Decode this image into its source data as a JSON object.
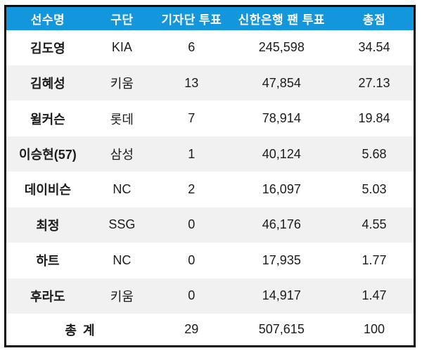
{
  "colors": {
    "header_bg": "#1496DC",
    "header_text": "#FFFFFF",
    "row_alt_bg": "#F1F1F1",
    "border": "#0D0D0D",
    "text": "#1B1B1B"
  },
  "chart_data": {
    "type": "table",
    "title": "",
    "columns": [
      "선수명",
      "구단",
      "기자단 투표",
      "신한은행 팬 투표",
      "총점"
    ],
    "rows": [
      [
        "김도영",
        "KIA",
        "6",
        "245,598",
        "34.54"
      ],
      [
        "김혜성",
        "키움",
        "13",
        "47,854",
        "27.13"
      ],
      [
        "윌커슨",
        "롯데",
        "7",
        "78,914",
        "19.84"
      ],
      [
        "이승현(57)",
        "삼성",
        "1",
        "40,124",
        "5.68"
      ],
      [
        "데이비슨",
        "NC",
        "2",
        "16,097",
        "5.03"
      ],
      [
        "최정",
        "SSG",
        "0",
        "46,176",
        "4.55"
      ],
      [
        "하트",
        "NC",
        "0",
        "17,935",
        "1.77"
      ],
      [
        "후라도",
        "키움",
        "0",
        "14,917",
        "1.47"
      ]
    ],
    "footer": [
      "총 계",
      "29",
      "507,615",
      "100"
    ],
    "layout_hints": {
      "striped": true,
      "header_position": "top",
      "footer_label_colspan": 2,
      "alignment": "center"
    }
  }
}
